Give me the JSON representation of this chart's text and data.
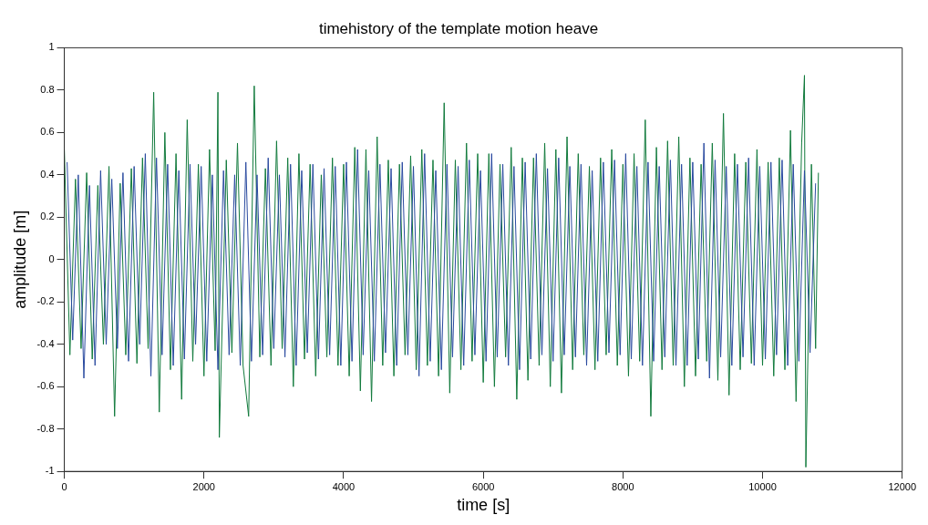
{
  "chart_data": {
    "type": "line",
    "title": "timehistory of the template motion heave",
    "xlabel": "time [s]",
    "ylabel": "amplitude [m]",
    "xlim": [
      0,
      12000
    ],
    "xticks": [
      0,
      2000,
      4000,
      6000,
      8000,
      10000,
      12000
    ],
    "ylim": [
      -1,
      1
    ],
    "yticks": [
      -1,
      -0.8,
      -0.6,
      -0.4,
      -0.2,
      0,
      0.2,
      0.4,
      0.6,
      0.8,
      1
    ],
    "grid": false,
    "marker": "none",
    "line_style": "solid",
    "series": [
      {
        "color": "#2a4a9f",
        "x": [
          40,
          120,
          200,
          280,
          360,
          440,
          520,
          600,
          680,
          760,
          840,
          920,
          1000,
          1080,
          1160,
          1240,
          1320,
          1400,
          1480,
          1560,
          1640,
          1720,
          1800,
          1880,
          1960,
          2040,
          2120,
          2200,
          2280,
          2360,
          2440,
          2520,
          2600,
          2680,
          2760,
          2840,
          2920,
          3000,
          3080,
          3160,
          3240,
          3320,
          3400,
          3480,
          3560,
          3640,
          3720,
          3800,
          3880,
          3960,
          4040,
          4120,
          4200,
          4280,
          4360,
          4440,
          4520,
          4600,
          4680,
          4760,
          4840,
          4920,
          5000,
          5080,
          5160,
          5240,
          5320,
          5400,
          5480,
          5560,
          5640,
          5720,
          5800,
          5880,
          5960,
          6040,
          6120,
          6200,
          6280,
          6360,
          6440,
          6520,
          6600,
          6680,
          6760,
          6840,
          6920,
          7000,
          7080,
          7160,
          7240,
          7320,
          7400,
          7480,
          7560,
          7640,
          7720,
          7800,
          7880,
          7960,
          8040,
          8120,
          8200,
          8280,
          8360,
          8440,
          8520,
          8600,
          8680,
          8760,
          8840,
          8920,
          9000,
          9080,
          9160,
          9240,
          9320,
          9400,
          9480,
          9560,
          9640,
          9720,
          9800,
          9880,
          9960,
          10040,
          10120,
          10200,
          10280,
          10360,
          10440,
          10520,
          10600,
          10680,
          10760
        ],
        "values": [
          0.46,
          -0.38,
          0.4,
          -0.56,
          0.35,
          -0.5,
          0.42,
          -0.4,
          0.38,
          -0.42,
          0.41,
          -0.48,
          0.44,
          -0.4,
          0.5,
          -0.55,
          0.48,
          -0.45,
          0.45,
          -0.5,
          0.42,
          -0.47,
          0.45,
          -0.4,
          0.44,
          -0.48,
          0.4,
          -0.52,
          0.42,
          -0.45,
          0.4,
          -0.5,
          0.46,
          -0.48,
          0.4,
          -0.45,
          0.48,
          -0.42,
          0.4,
          -0.46,
          0.45,
          -0.5,
          0.42,
          -0.44,
          0.45,
          -0.47,
          0.43,
          -0.45,
          0.44,
          -0.5,
          0.46,
          -0.48,
          0.52,
          -0.45,
          0.42,
          -0.48,
          0.45,
          -0.44,
          0.43,
          -0.5,
          0.46,
          -0.45,
          0.44,
          -0.55,
          0.5,
          -0.48,
          0.42,
          -0.52,
          0.45,
          -0.46,
          0.44,
          -0.5,
          0.47,
          -0.45,
          0.42,
          -0.48,
          0.5,
          -0.46,
          0.45,
          -0.5,
          0.44,
          -0.52,
          0.46,
          -0.47,
          0.5,
          -0.45,
          0.43,
          -0.48,
          0.48,
          -0.45,
          0.44,
          -0.46,
          0.45,
          -0.5,
          0.42,
          -0.48,
          0.46,
          -0.44,
          0.47,
          -0.45,
          0.5,
          -0.47,
          0.44,
          -0.5,
          0.46,
          -0.48,
          0.44,
          -0.46,
          0.47,
          -0.5,
          0.45,
          -0.5,
          0.46,
          -0.47,
          0.55,
          -0.56,
          0.47,
          -0.46,
          0.44,
          -0.5,
          0.45,
          -0.46,
          0.48,
          -0.5,
          0.44,
          -0.47,
          0.46,
          -0.45,
          0.47,
          -0.5,
          0.45,
          -0.48,
          0.42,
          -0.44,
          0.36
        ]
      },
      {
        "color": "#117a3c",
        "x": [
          0,
          80,
          160,
          240,
          320,
          400,
          480,
          560,
          640,
          720,
          800,
          880,
          960,
          1040,
          1120,
          1200,
          1280,
          1360,
          1440,
          1520,
          1600,
          1680,
          1760,
          1840,
          1920,
          2000,
          2080,
          2160,
          2200,
          2220,
          2320,
          2400,
          2480,
          2560,
          2640,
          2720,
          2800,
          2880,
          2960,
          3040,
          3120,
          3200,
          3280,
          3360,
          3440,
          3520,
          3600,
          3680,
          3760,
          3840,
          3920,
          4000,
          4080,
          4160,
          4240,
          4320,
          4400,
          4480,
          4560,
          4640,
          4720,
          4800,
          4880,
          4960,
          5040,
          5120,
          5200,
          5280,
          5360,
          5440,
          5520,
          5600,
          5680,
          5760,
          5840,
          5920,
          6000,
          6080,
          6160,
          6240,
          6320,
          6400,
          6480,
          6560,
          6640,
          6720,
          6800,
          6880,
          6960,
          7040,
          7120,
          7200,
          7280,
          7360,
          7440,
          7520,
          7600,
          7680,
          7760,
          7840,
          7920,
          8000,
          8080,
          8160,
          8240,
          8320,
          8400,
          8480,
          8560,
          8640,
          8720,
          8800,
          8880,
          8960,
          9040,
          9120,
          9200,
          9280,
          9360,
          9440,
          9520,
          9600,
          9680,
          9760,
          9840,
          9920,
          10000,
          10080,
          10160,
          10240,
          10320,
          10400,
          10480,
          10560,
          10600,
          10620,
          10700,
          10760,
          10800
        ],
        "values": [
          0.52,
          -0.45,
          0.38,
          -0.42,
          0.41,
          -0.47,
          0.35,
          -0.4,
          0.44,
          -0.74,
          0.36,
          -0.45,
          0.43,
          -0.49,
          0.48,
          -0.42,
          0.79,
          -0.72,
          0.6,
          -0.52,
          0.5,
          -0.66,
          0.66,
          -0.48,
          0.45,
          -0.55,
          0.52,
          -0.43,
          0.79,
          -0.84,
          0.47,
          -0.44,
          0.55,
          -0.5,
          -0.74,
          0.82,
          -0.46,
          0.43,
          -0.5,
          0.56,
          -0.42,
          0.48,
          -0.6,
          0.5,
          -0.47,
          0.45,
          -0.55,
          0.4,
          -0.46,
          0.48,
          -0.5,
          0.45,
          -0.55,
          0.53,
          -0.62,
          0.52,
          -0.67,
          0.58,
          -0.5,
          0.47,
          -0.55,
          0.45,
          -0.45,
          0.49,
          -0.52,
          0.52,
          -0.5,
          0.47,
          -0.55,
          0.74,
          -0.63,
          0.47,
          -0.52,
          0.55,
          -0.48,
          0.5,
          -0.58,
          0.5,
          -0.6,
          0.45,
          -0.46,
          0.53,
          -0.66,
          0.48,
          -0.57,
          0.48,
          -0.5,
          0.55,
          -0.6,
          0.52,
          -0.63,
          0.58,
          -0.52,
          0.5,
          -0.45,
          0.44,
          -0.52,
          0.48,
          -0.45,
          0.52,
          -0.5,
          0.45,
          -0.55,
          0.5,
          -0.48,
          0.66,
          -0.74,
          0.53,
          -0.52,
          0.56,
          -0.5,
          0.58,
          -0.6,
          0.48,
          -0.55,
          0.45,
          -0.48,
          0.55,
          -0.57,
          0.69,
          -0.64,
          0.5,
          -0.52,
          0.46,
          -0.49,
          0.52,
          -0.5,
          0.46,
          -0.55,
          0.48,
          -0.52,
          0.61,
          -0.67,
          0.55,
          0.87,
          -0.98,
          0.45,
          -0.42,
          0.41
        ]
      }
    ]
  }
}
